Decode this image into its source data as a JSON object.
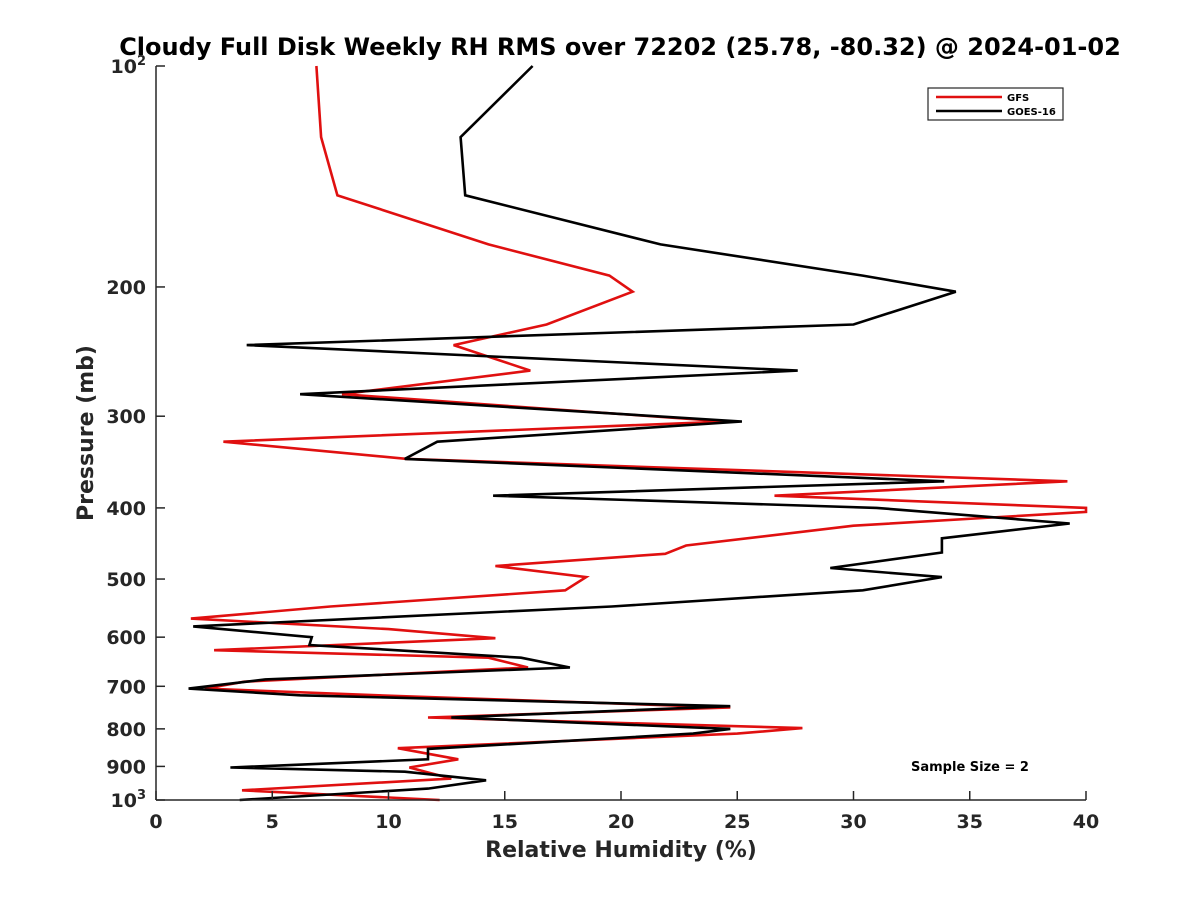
{
  "chart_data": {
    "type": "line",
    "title": "Cloudy Full Disk Weekly RH RMS over 72202 (25.78, -80.32) @ 2024-01-02",
    "xlabel": "Relative Humidity (%)",
    "ylabel": "Pressure (mb)",
    "xlim": [
      0,
      40
    ],
    "ylim": [
      100,
      1000
    ],
    "y_scale": "log",
    "y_reversed": true,
    "x_ticks": [
      "0",
      "5",
      "10",
      "15",
      "20",
      "25",
      "30",
      "35",
      "40"
    ],
    "y_ticks": [
      {
        "value": 100,
        "label": "10",
        "exp": "2"
      },
      {
        "value": 200,
        "label": "200"
      },
      {
        "value": 300,
        "label": "300"
      },
      {
        "value": 400,
        "label": "400"
      },
      {
        "value": 500,
        "label": "500"
      },
      {
        "value": 600,
        "label": "600"
      },
      {
        "value": 700,
        "label": "700"
      },
      {
        "value": 800,
        "label": "800"
      },
      {
        "value": 900,
        "label": "900"
      },
      {
        "value": 1000,
        "label": "10",
        "exp": "3"
      }
    ],
    "grid": false,
    "legend_position": "top-right",
    "annotation": "Sample Size = 2",
    "series": [
      {
        "name": "GFS",
        "color": "#e01010",
        "points": [
          [
            6.9,
            100
          ],
          [
            7.1,
            125
          ],
          [
            7.8,
            150
          ],
          [
            14.3,
            175
          ],
          [
            19.5,
            193
          ],
          [
            20.5,
            203
          ],
          [
            16.8,
            225
          ],
          [
            12.8,
            240
          ],
          [
            16.1,
            260
          ],
          [
            8.0,
            280
          ],
          [
            24.5,
            305
          ],
          [
            2.9,
            325
          ],
          [
            10.8,
            343
          ],
          [
            39.2,
            368
          ],
          [
            26.6,
            385
          ],
          [
            40.0,
            400
          ],
          [
            40.0,
            405
          ],
          [
            30.0,
            423
          ],
          [
            22.8,
            450
          ],
          [
            21.9,
            462
          ],
          [
            14.6,
            480
          ],
          [
            18.5,
            497
          ],
          [
            17.6,
            518
          ],
          [
            7.5,
            545
          ],
          [
            1.5,
            566
          ],
          [
            10.0,
            585
          ],
          [
            14.6,
            602
          ],
          [
            2.5,
            625
          ],
          [
            14.3,
            640
          ],
          [
            16.0,
            660
          ],
          [
            3.8,
            690
          ],
          [
            2.1,
            705
          ],
          [
            10.6,
            722
          ],
          [
            24.7,
            748
          ],
          [
            11.7,
            772
          ],
          [
            27.8,
            798
          ],
          [
            25.0,
            812
          ],
          [
            10.4,
            850
          ],
          [
            13.0,
            880
          ],
          [
            10.9,
            903
          ],
          [
            12.7,
            935
          ],
          [
            3.7,
            970
          ],
          [
            12.2,
            1000
          ]
        ]
      },
      {
        "name": "GOES-16",
        "color": "#000000",
        "points": [
          [
            16.2,
            100
          ],
          [
            13.1,
            125
          ],
          [
            13.3,
            150
          ],
          [
            21.7,
            175
          ],
          [
            30.4,
            193
          ],
          [
            34.4,
            203
          ],
          [
            30.0,
            225
          ],
          [
            3.9,
            240
          ],
          [
            27.6,
            260
          ],
          [
            6.2,
            280
          ],
          [
            25.2,
            305
          ],
          [
            12.1,
            325
          ],
          [
            10.7,
            343
          ],
          [
            33.9,
            368
          ],
          [
            14.5,
            385
          ],
          [
            31.0,
            400
          ],
          [
            39.3,
            420
          ],
          [
            33.8,
            440
          ],
          [
            33.8,
            460
          ],
          [
            29.0,
            483
          ],
          [
            33.8,
            497
          ],
          [
            30.4,
            518
          ],
          [
            19.6,
            545
          ],
          [
            1.6,
            580
          ],
          [
            6.7,
            600
          ],
          [
            6.6,
            615
          ],
          [
            15.7,
            640
          ],
          [
            17.8,
            660
          ],
          [
            4.7,
            685
          ],
          [
            1.4,
            705
          ],
          [
            6.2,
            720
          ],
          [
            24.7,
            745
          ],
          [
            12.7,
            772
          ],
          [
            24.7,
            800
          ],
          [
            23.1,
            812
          ],
          [
            11.7,
            852
          ],
          [
            11.7,
            880
          ],
          [
            3.2,
            903
          ],
          [
            10.7,
            915
          ],
          [
            14.2,
            940
          ],
          [
            11.7,
            965
          ],
          [
            3.6,
            1000
          ]
        ]
      }
    ]
  }
}
